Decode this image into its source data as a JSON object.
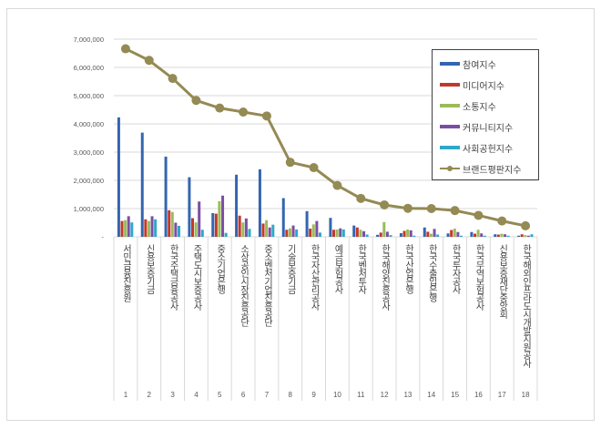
{
  "chart_data": {
    "type": "bar",
    "title": "",
    "xlabel": "",
    "ylabel": "",
    "ylim": [
      0,
      7000000
    ],
    "yticks": [
      "-",
      "1,000,000",
      "2,000,000",
      "3,000,000",
      "4,000,000",
      "5,000,000",
      "6,000,000",
      "7,000,000"
    ],
    "grid": true,
    "legend_position": "upper-right-inside",
    "categories": [
      "서민금융진흥원",
      "신용보증기금",
      "한국주택금융공사",
      "주택도시보증공사",
      "중소기업은행",
      "소상공인시장진흥공단",
      "중소벤처기업진흥공단",
      "기술보증기금",
      "한국자산관리공사",
      "예금보험공사",
      "한국벤처투자",
      "한국해양진흥공사",
      "한국산업은행",
      "한국수출입은행",
      "한국투자공사",
      "한국무역보험공사",
      "신용보증재단중앙회",
      "한국해외인프라도시개발지원공사"
    ],
    "ranks": [
      "1",
      "2",
      "3",
      "4",
      "5",
      "6",
      "7",
      "8",
      "9",
      "10",
      "11",
      "12",
      "13",
      "14",
      "15",
      "16",
      "17",
      "18"
    ],
    "series": [
      {
        "name": "참여지수",
        "type": "bar",
        "color": "#3465b0",
        "values": [
          4230000,
          3690000,
          2840000,
          2110000,
          840000,
          2200000,
          2390000,
          1370000,
          910000,
          670000,
          400000,
          70000,
          130000,
          330000,
          120000,
          170000,
          90000,
          40000
        ]
      },
      {
        "name": "미디어지수",
        "type": "bar",
        "color": "#c0392b",
        "values": [
          560000,
          620000,
          940000,
          660000,
          820000,
          750000,
          470000,
          250000,
          290000,
          250000,
          330000,
          150000,
          210000,
          180000,
          240000,
          110000,
          80000,
          90000
        ]
      },
      {
        "name": "소통지수",
        "type": "bar",
        "color": "#9bbb59",
        "values": [
          590000,
          560000,
          880000,
          510000,
          1260000,
          510000,
          590000,
          300000,
          440000,
          260000,
          250000,
          520000,
          260000,
          110000,
          290000,
          250000,
          110000,
          60000
        ]
      },
      {
        "name": "커뮤니티지수",
        "type": "bar",
        "color": "#7b4ea3",
        "values": [
          730000,
          730000,
          500000,
          1250000,
          1460000,
          650000,
          330000,
          400000,
          560000,
          300000,
          200000,
          180000,
          230000,
          280000,
          170000,
          120000,
          90000,
          40000
        ]
      },
      {
        "name": "사회공헌지수",
        "type": "bar",
        "color": "#2ea8c8",
        "values": [
          510000,
          620000,
          390000,
          250000,
          140000,
          280000,
          430000,
          260000,
          150000,
          260000,
          80000,
          60000,
          40000,
          80000,
          40000,
          40000,
          40000,
          90000
        ]
      },
      {
        "name": "브랜드평판지수",
        "type": "line",
        "color": "#948a54",
        "values": [
          6660000,
          6250000,
          5610000,
          4830000,
          4560000,
          4420000,
          4280000,
          2640000,
          2450000,
          1820000,
          1360000,
          1130000,
          1010000,
          1000000,
          930000,
          760000,
          560000,
          390000
        ]
      }
    ]
  },
  "legend": {
    "items": [
      {
        "label": "참여지수",
        "color": "#3465b0",
        "kind": "bar"
      },
      {
        "label": "미디어지수",
        "color": "#c0392b",
        "kind": "bar"
      },
      {
        "label": "소통지수",
        "color": "#9bbb59",
        "kind": "bar"
      },
      {
        "label": "커뮤니티지수",
        "color": "#7b4ea3",
        "kind": "bar"
      },
      {
        "label": "사회공헌지수",
        "color": "#2ea8c8",
        "kind": "bar"
      },
      {
        "label": "브랜드평판지수",
        "color": "#948a54",
        "kind": "line"
      }
    ]
  }
}
